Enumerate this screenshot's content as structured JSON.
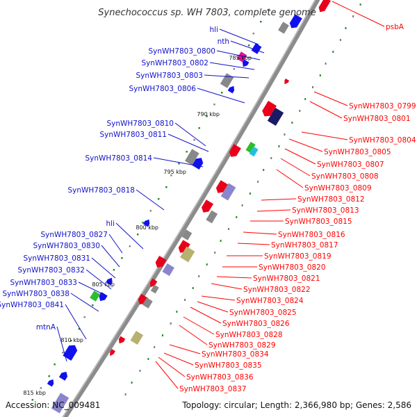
{
  "title": "Synechococcus sp. WH 7803, complete genome",
  "footer": {
    "accession": "Accession: NC_009481",
    "summary": "Topology: circular; Length: 2,366,980 bp; Genes: 2,586"
  },
  "colors": {
    "backbone": "#8c8c8c",
    "plus_strand_cds": "#e8001a",
    "minus_strand_cds": "#1111ee",
    "dark_red": "#990000",
    "navy": "#1a1a66",
    "grey": "#888888",
    "lavender": "#8a86cc",
    "khaki": "#b8b070",
    "magenta": "#e0109a",
    "green": "#2dbd2d",
    "cyan": "#22c0dd",
    "label_plus": "#ff0000",
    "label_minus": "#1010c8"
  },
  "kbp_ticks": [
    {
      "label": "785 kbp"
    },
    {
      "label": "790 kbp"
    },
    {
      "label": "795 kbp"
    },
    {
      "label": "800 kbp"
    },
    {
      "label": "805 kbp"
    },
    {
      "label": "810 kbp"
    },
    {
      "label": "815 kbp"
    }
  ],
  "labels_left": [
    {
      "text": "hli"
    },
    {
      "text": "nth"
    },
    {
      "text": "SynWH7803_0800"
    },
    {
      "text": "SynWH7803_0802"
    },
    {
      "text": "SynWH7803_0803"
    },
    {
      "text": "SynWH7803_0806"
    },
    {
      "text": "SynWH7803_0810"
    },
    {
      "text": "SynWH7803_0811"
    },
    {
      "text": "SynWH7803_0814"
    },
    {
      "text": "SynWH7803_0818"
    },
    {
      "text": "hli"
    },
    {
      "text": "SynWH7803_0827"
    },
    {
      "text": "SynWH7803_0830"
    },
    {
      "text": "SynWH7803_0831"
    },
    {
      "text": "SynWH7803_0832"
    },
    {
      "text": "SynWH7803_0833"
    },
    {
      "text": "SynWH7803_0838"
    },
    {
      "text": "SynWH7803_0841"
    },
    {
      "text": "mtnA"
    }
  ],
  "labels_right": [
    {
      "text": "psbA"
    },
    {
      "text": "SynWH7803_0799"
    },
    {
      "text": "SynWH7803_0801"
    },
    {
      "text": "SynWH7803_0804"
    },
    {
      "text": "SynWH7803_0805"
    },
    {
      "text": "SynWH7803_0807"
    },
    {
      "text": "SynWH7803_0808"
    },
    {
      "text": "SynWH7803_0809"
    },
    {
      "text": "SynWH7803_0812"
    },
    {
      "text": "SynWH7803_0813"
    },
    {
      "text": "SynWH7803_0815"
    },
    {
      "text": "SynWH7803_0816"
    },
    {
      "text": "SynWH7803_0817"
    },
    {
      "text": "SynWH7803_0819"
    },
    {
      "text": "SynWH7803_0820"
    },
    {
      "text": "SynWH7803_0821"
    },
    {
      "text": "SynWH7803_0822"
    },
    {
      "text": "SynWH7803_0824"
    },
    {
      "text": "SynWH7803_0825"
    },
    {
      "text": "SynWH7803_0826"
    },
    {
      "text": "SynWH7803_0828"
    },
    {
      "text": "SynWH7803_0829"
    },
    {
      "text": "SynWH7803_0834"
    },
    {
      "text": "SynWH7803_0835"
    },
    {
      "text": "SynWH7803_0836"
    },
    {
      "text": "SynWH7803_0837"
    }
  ]
}
